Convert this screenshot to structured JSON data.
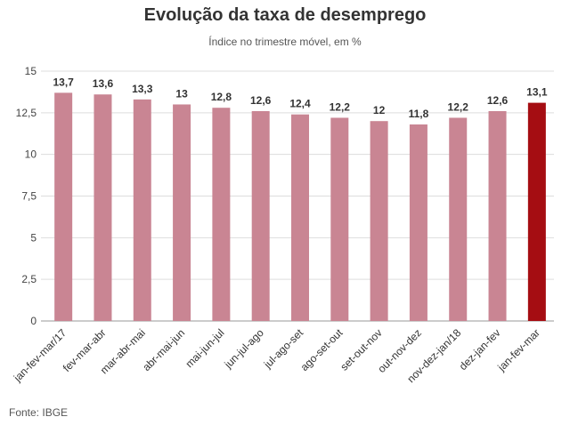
{
  "chart_data": {
    "type": "bar",
    "title": "Evolução da taxa de desemprego",
    "subtitle": "Índice no trimestre móvel, em %",
    "categories": [
      "jan-fev-mar/17",
      "fev-mar-abr",
      "mar-abr-mai",
      "abr-mai-jun",
      "mai-jun-jul",
      "jun-jul-ago",
      "jul-ago-set",
      "ago-set-out",
      "set-out-nov",
      "out-nov-dez",
      "nov-dez-jan/18",
      "dez-jan-fev",
      "jan-fev-mar"
    ],
    "values": [
      13.7,
      13.6,
      13.3,
      13,
      12.8,
      12.6,
      12.4,
      12.2,
      12,
      11.8,
      12.2,
      12.6,
      13.1
    ],
    "value_labels": [
      "13,7",
      "13,6",
      "13,3",
      "13",
      "12,8",
      "12,6",
      "12,4",
      "12,2",
      "12",
      "11,8",
      "12,2",
      "12,6",
      "13,1"
    ],
    "ylim": [
      0,
      15
    ],
    "yticks": [
      0,
      2.5,
      5,
      7.5,
      10,
      12.5,
      15
    ],
    "ytick_labels": [
      "0",
      "2,5",
      "5",
      "7,5",
      "10",
      "12,5",
      "15"
    ],
    "xlabel": "",
    "ylabel": "",
    "grid": true,
    "bar_color": "#c98593",
    "highlight_color": "#a50d12",
    "highlight_index": 12
  },
  "source": "Fonte: IBGE"
}
